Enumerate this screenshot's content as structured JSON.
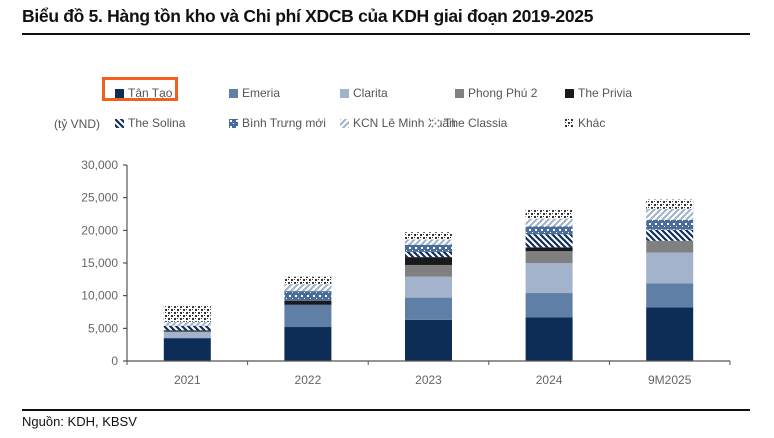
{
  "title": "Biểu đồ 5. Hàng tồn kho và Chi phí XDCB của KDH giai đoạn 2019-2025",
  "source": "Nguồn: KDH, KBSV",
  "highlight_color": "#f0601e",
  "chart_data": {
    "type": "bar",
    "stacked": true,
    "title": "Biểu đồ 5. Hàng tồn kho và Chi phí XDCB của KDH giai đoạn 2019-2025",
    "xlabel": "",
    "ylabel": "(tỷ VND)",
    "ylim": [
      0,
      30000
    ],
    "yticks": [
      0,
      5000,
      10000,
      15000,
      20000,
      25000,
      30000
    ],
    "ytick_labels": [
      "0",
      "5,000",
      "10,000",
      "15,000",
      "20,000",
      "25,000",
      "30,000"
    ],
    "grid": false,
    "legend_position": "top",
    "highlighted_legend_entry": "Tân Tạo",
    "categories": [
      "2021",
      "2022",
      "2023",
      "2024",
      "9M2025"
    ],
    "series": [
      {
        "name": "Tân Tạo",
        "color": "#0d2d57",
        "pattern": "solid",
        "values": [
          3500,
          5200,
          6300,
          6700,
          8200
        ]
      },
      {
        "name": "Emeria",
        "color": "#5f7fa6",
        "pattern": "solid",
        "values": [
          0,
          3400,
          3400,
          3700,
          3700
        ]
      },
      {
        "name": "Clarita",
        "color": "#a3b3cc",
        "pattern": "solid",
        "values": [
          1000,
          0,
          3200,
          4600,
          4700
        ]
      },
      {
        "name": "Phong Phú 2",
        "color": "#808080",
        "pattern": "solid",
        "values": [
          0,
          0,
          1800,
          1800,
          1800
        ]
      },
      {
        "name": "The Privia",
        "color": "#1a1a1a",
        "pattern": "solid",
        "values": [
          200,
          600,
          1200,
          600,
          0
        ]
      },
      {
        "name": "The Solina",
        "color": "#0d2d57",
        "pattern": "diagonal",
        "values": [
          700,
          0,
          800,
          2000,
          1700
        ]
      },
      {
        "name": "Bình Trưng mới",
        "color": "#4a6c9b",
        "pattern": "grid",
        "values": [
          0,
          1500,
          1100,
          1200,
          1500
        ]
      },
      {
        "name": "KCN Lê Minh Xuân",
        "color": "#9fb0c9",
        "pattern": "wide-diagonal",
        "values": [
          600,
          1100,
          800,
          1200,
          1700
        ]
      },
      {
        "name": "The Classia",
        "color": "#7a7a7a",
        "pattern": "dots",
        "values": [
          0,
          0,
          0,
          0,
          0
        ]
      },
      {
        "name": "Khác",
        "color": "#333333",
        "pattern": "checker",
        "values": [
          2400,
          1100,
          1100,
          1300,
          1400
        ]
      }
    ]
  },
  "legend": {
    "unit": "(tỷ VND)",
    "row1": [
      "Tân Tạo",
      "Emeria",
      "Clarita",
      "Phong Phú 2",
      "The Privia"
    ],
    "row2": [
      "The Solina",
      "Bình Trưng mới",
      "KCN Lê Minh Xuân",
      "The Classia",
      "Khác"
    ]
  }
}
